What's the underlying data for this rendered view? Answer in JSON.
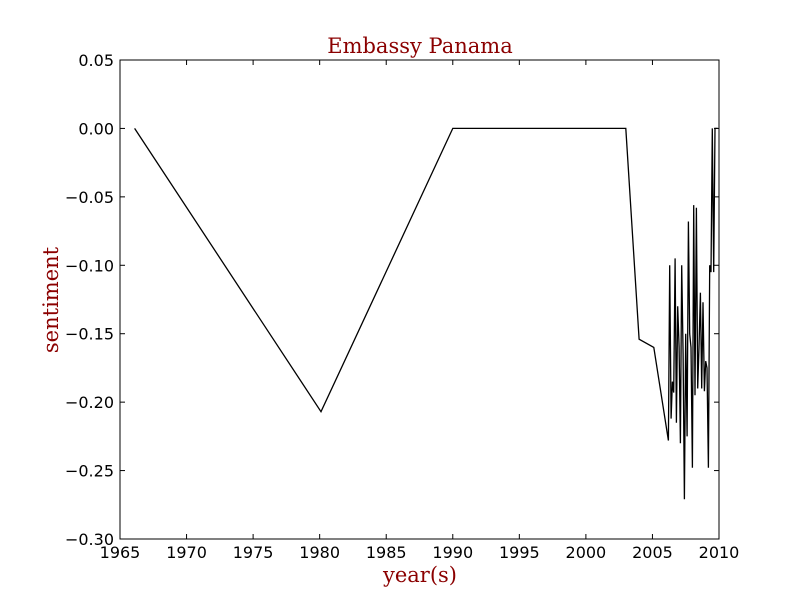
{
  "chart_data": {
    "type": "line",
    "title": "Embassy Panama",
    "xlabel": "year(s)",
    "ylabel": "sentiment",
    "xlim": [
      1965,
      2010
    ],
    "ylim": [
      -0.3,
      0.05
    ],
    "xticks": [
      1965,
      1970,
      1975,
      1980,
      1985,
      1990,
      1995,
      2000,
      2005,
      2010
    ],
    "xtick_labels": [
      "1965",
      "1970",
      "1975",
      "1980",
      "1985",
      "1990",
      "1995",
      "2000",
      "2005",
      "2010"
    ],
    "yticks": [
      0.05,
      0.0,
      -0.05,
      -0.1,
      -0.15,
      -0.2,
      -0.25,
      -0.3
    ],
    "ytick_labels": [
      "0.05",
      "0.00",
      "−0.05",
      "−0.10",
      "−0.15",
      "−0.20",
      "−0.25",
      "−0.30"
    ],
    "grid": false,
    "legend": "none",
    "colors": {
      "line": "#000000",
      "text_accent": "#8b0000",
      "axes": "#000000"
    },
    "series": [
      {
        "x": [
          1966.1,
          1980.1,
          1990.0,
          2003.0,
          2004.0,
          2005.1,
          2006.2,
          2006.3,
          2006.4,
          2006.5,
          2006.6,
          2006.7,
          2006.8,
          2006.9,
          2007.0,
          2007.1,
          2007.2,
          2007.3,
          2007.4,
          2007.5,
          2007.6,
          2007.7,
          2007.8,
          2007.9,
          2008.0,
          2008.1,
          2008.2,
          2008.3,
          2008.4,
          2008.5,
          2008.6,
          2008.7,
          2008.8,
          2008.9,
          2009.0,
          2009.1,
          2009.2,
          2009.3,
          2009.4,
          2009.5,
          2009.6,
          2009.7,
          2009.8,
          2009.9
        ],
        "y": [
          0.0,
          -0.207,
          0.0,
          0.0,
          -0.154,
          -0.16,
          -0.228,
          -0.1,
          -0.212,
          -0.185,
          -0.193,
          -0.095,
          -0.215,
          -0.13,
          -0.16,
          -0.23,
          -0.1,
          -0.165,
          -0.271,
          -0.15,
          -0.225,
          -0.068,
          -0.15,
          -0.16,
          -0.248,
          -0.056,
          -0.195,
          -0.058,
          -0.19,
          -0.16,
          -0.12,
          -0.19,
          -0.127,
          -0.192,
          -0.17,
          -0.175,
          -0.248,
          -0.1,
          -0.105,
          0.0,
          -0.105,
          0.0,
          0.0,
          0.0
        ]
      }
    ]
  }
}
